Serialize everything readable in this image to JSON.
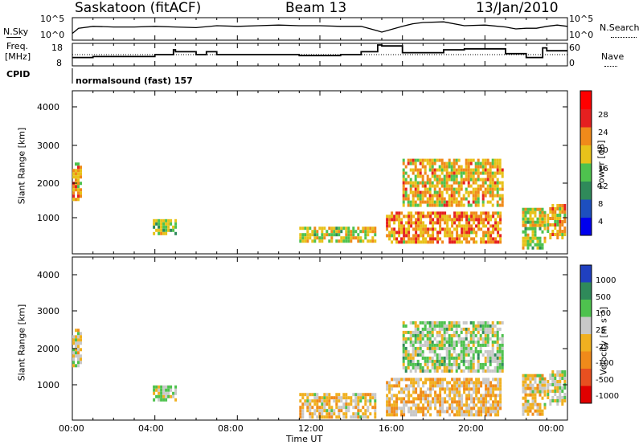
{
  "header": {
    "station": "Saskatoon (fitACF)",
    "beam": "Beam 13",
    "date": "13/Jan/2010"
  },
  "noise_panel": {
    "left_label": "N.Sky",
    "right_label": "N.Search",
    "left_ticks": [
      "10^5",
      "10^0"
    ],
    "right_ticks": [
      "10^5",
      "10^0"
    ]
  },
  "freq_panel": {
    "left_label_line1": "Freq.",
    "left_label_line2": "[MHz]",
    "right_label": "Nave",
    "left_ticks": [
      "18",
      "8"
    ],
    "right_ticks": [
      "60",
      "0"
    ]
  },
  "cpid": {
    "label": "CPID",
    "text": "normalsound (fast) 157"
  },
  "x_axis": {
    "title": "Time UT",
    "ticks": [
      "00:00",
      "04:00",
      "08:00",
      "12:00",
      "16:00",
      "20:00",
      "00:00"
    ]
  },
  "power_panel": {
    "ylabel": "Slant Range [km]",
    "yticks": [
      "4000",
      "3000",
      "2000",
      "1000"
    ],
    "colorbar_label": "Power [dB]",
    "colorbar_ticks": [
      "28",
      "24",
      "20",
      "16",
      "12",
      "8",
      "4"
    ],
    "colors": [
      "#0000ee",
      "#1d4fbf",
      "#2f8a5a",
      "#4ec24e",
      "#e8c21a",
      "#f08a1a",
      "#e52020",
      "#ff0000"
    ]
  },
  "velocity_panel": {
    "ylabel": "Slant Range [km]",
    "yticks": [
      "4000",
      "3000",
      "2000",
      "1000"
    ],
    "colorbar_label": "Velocity [m s⁻¹]",
    "colorbar_ticks": [
      "1000",
      "500",
      "100",
      "25",
      "-25",
      "-100",
      "-500",
      "-1000"
    ],
    "colors": [
      "#2040c0",
      "#2f8a5a",
      "#4ec24e",
      "#c8c8c8",
      "#f0b020",
      "#f08a1a",
      "#e85020",
      "#e00000"
    ]
  },
  "chart_data": [
    {
      "type": "line",
      "title": "",
      "xlabel": "",
      "ylabel": "N.Sky",
      "x_range_hours": [
        0,
        24
      ],
      "series": [
        {
          "x": [
            0,
            0.3,
            1,
            2,
            3,
            4,
            5,
            6,
            7,
            8,
            9,
            10,
            11,
            12,
            13,
            14,
            14.8,
            15,
            16,
            16.5,
            17,
            18,
            19,
            20,
            21,
            21.5,
            22,
            22.5,
            23,
            23.5,
            24
          ],
          "y": [
            0.8,
            1.6,
            1.9,
            1.8,
            1.8,
            1.9,
            1.8,
            1.7,
            2.0,
            1.9,
            2.0,
            2.1,
            2.0,
            2.0,
            1.9,
            1.9,
            1.2,
            1.0,
            1.9,
            2.3,
            2.5,
            2.6,
            2.0,
            2.1,
            1.8,
            1.5,
            1.6,
            1.6,
            1.9,
            2.1,
            1.9
          ]
        }
      ]
    },
    {
      "type": "line",
      "title": "",
      "xlabel": "",
      "ylabel": "Freq. [MHz]",
      "x_range_hours": [
        0,
        24
      ],
      "series": [
        {
          "x": [
            0,
            0.6,
            1,
            2,
            3,
            4,
            4.9,
            5,
            6,
            6.5,
            7,
            8,
            9,
            10,
            11,
            12,
            13,
            14,
            14.8,
            15,
            16,
            17,
            18,
            19,
            20,
            21,
            21.5,
            22,
            22.8,
            23,
            24
          ],
          "y": [
            11.5,
            11.5,
            12.0,
            12.0,
            12.0,
            13.0,
            15.5,
            14.5,
            13.0,
            14.5,
            13.0,
            13.0,
            13.0,
            13.0,
            12.5,
            12.5,
            13.0,
            14.5,
            18.0,
            17.5,
            14.0,
            14.0,
            15.5,
            16.0,
            16.0,
            13.5,
            13.5,
            11.5,
            16.5,
            15.0,
            15.0
          ]
        }
      ]
    },
    {
      "type": "heatmap",
      "title": "",
      "xlabel": "Time UT",
      "ylabel": "Slant Range [km]",
      "colorbar": "Power [dB]",
      "x_range_hours": [
        0,
        24
      ],
      "ylim": [
        180,
        4500
      ],
      "colorbar_range": [
        0,
        30
      ],
      "echo_regions": [
        {
          "t_start": 0.0,
          "t_end": 0.4,
          "r_min": 1600,
          "r_max": 2600,
          "power": 18
        },
        {
          "t_start": 3.9,
          "t_end": 5.0,
          "r_min": 700,
          "r_max": 1100,
          "power": 14
        },
        {
          "t_start": 11.0,
          "t_end": 14.7,
          "r_min": 500,
          "r_max": 900,
          "power": 16
        },
        {
          "t_start": 15.2,
          "t_end": 20.8,
          "r_min": 500,
          "r_max": 1300,
          "power": 20
        },
        {
          "t_start": 16.0,
          "t_end": 20.8,
          "r_min": 1500,
          "r_max": 2700,
          "power": 18
        },
        {
          "t_start": 21.8,
          "t_end": 22.9,
          "r_min": 300,
          "r_max": 1400,
          "power": 16
        },
        {
          "t_start": 23.0,
          "t_end": 23.9,
          "r_min": 600,
          "r_max": 1500,
          "power": 18
        }
      ]
    },
    {
      "type": "heatmap",
      "title": "",
      "xlabel": "Time UT",
      "ylabel": "Slant Range [km]",
      "colorbar": "Velocity [m s⁻¹]",
      "x_range_hours": [
        0,
        24
      ],
      "ylim": [
        180,
        4500
      ],
      "colorbar_range": [
        -1000,
        1000
      ],
      "echo_regions": [
        {
          "t_start": 0.0,
          "t_end": 0.4,
          "r_min": 1600,
          "r_max": 2600,
          "velocity": 0
        },
        {
          "t_start": 3.9,
          "t_end": 5.0,
          "r_min": 700,
          "r_max": 1100,
          "velocity": 100
        },
        {
          "t_start": 11.0,
          "t_end": 14.7,
          "r_min": 300,
          "r_max": 900,
          "velocity": -50
        },
        {
          "t_start": 15.2,
          "t_end": 20.8,
          "r_min": 300,
          "r_max": 1300,
          "velocity": -100
        },
        {
          "t_start": 16.0,
          "t_end": 20.8,
          "r_min": 1500,
          "r_max": 2800,
          "velocity": 200
        },
        {
          "t_start": 21.8,
          "t_end": 22.9,
          "r_min": 300,
          "r_max": 1400,
          "velocity": 0
        },
        {
          "t_start": 23.0,
          "t_end": 23.9,
          "r_min": 600,
          "r_max": 1500,
          "velocity": 100
        }
      ]
    }
  ]
}
